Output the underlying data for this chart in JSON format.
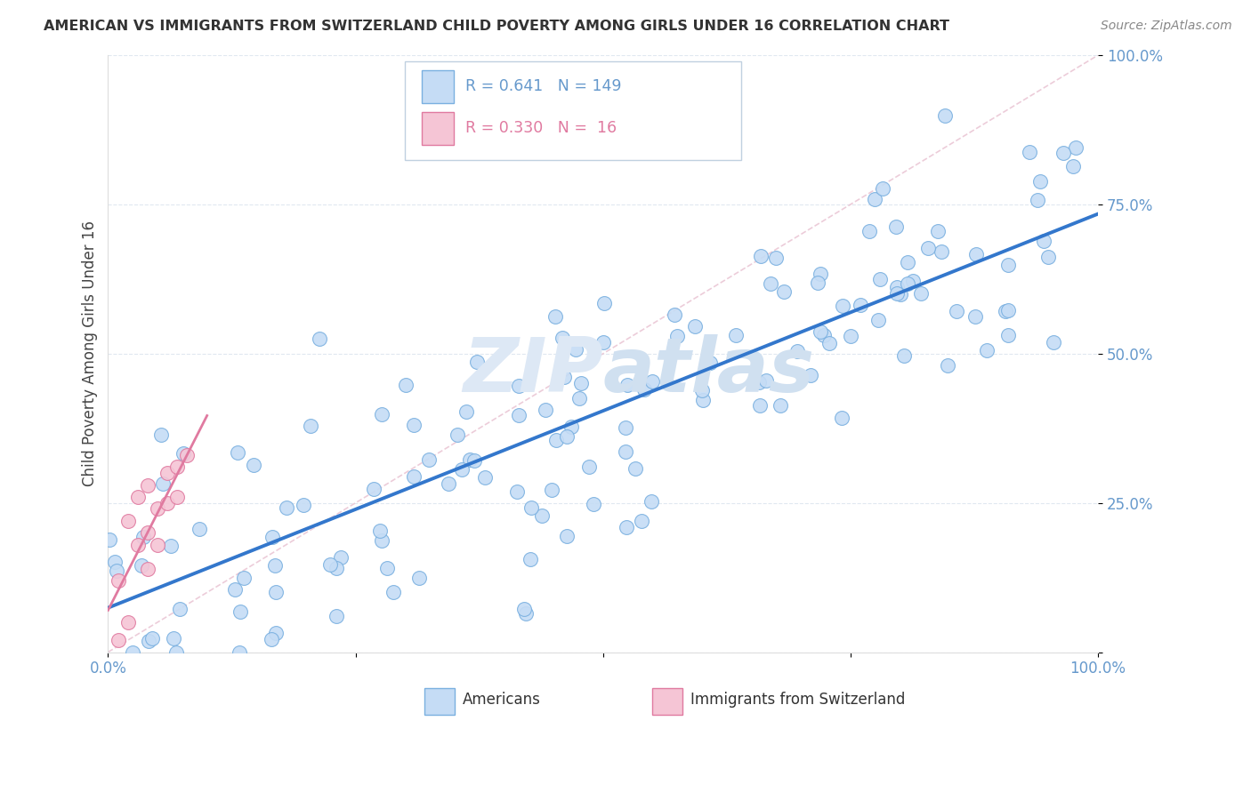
{
  "title": "AMERICAN VS IMMIGRANTS FROM SWITZERLAND CHILD POVERTY AMONG GIRLS UNDER 16 CORRELATION CHART",
  "source": "Source: ZipAtlas.com",
  "ylabel": "Child Poverty Among Girls Under 16",
  "xlim": [
    0.0,
    1.0
  ],
  "ylim": [
    0.0,
    1.0
  ],
  "americans_R": 0.641,
  "americans_N": 149,
  "swiss_R": 0.33,
  "swiss_N": 16,
  "american_color": "#c5dcf5",
  "american_edge_color": "#7ab0e0",
  "swiss_color": "#f5c5d5",
  "swiss_edge_color": "#e07aa0",
  "american_line_color": "#3377cc",
  "swiss_line_color": "#e090b0",
  "diagonal_color": "#e8c0d0",
  "tick_label_color": "#6699cc",
  "background_color": "#ffffff",
  "watermark_color": "#dde8f5",
  "grid_color": "#e0e8f0",
  "legend_edge_color": "#c0d0e0",
  "title_color": "#333333",
  "source_color": "#888888"
}
